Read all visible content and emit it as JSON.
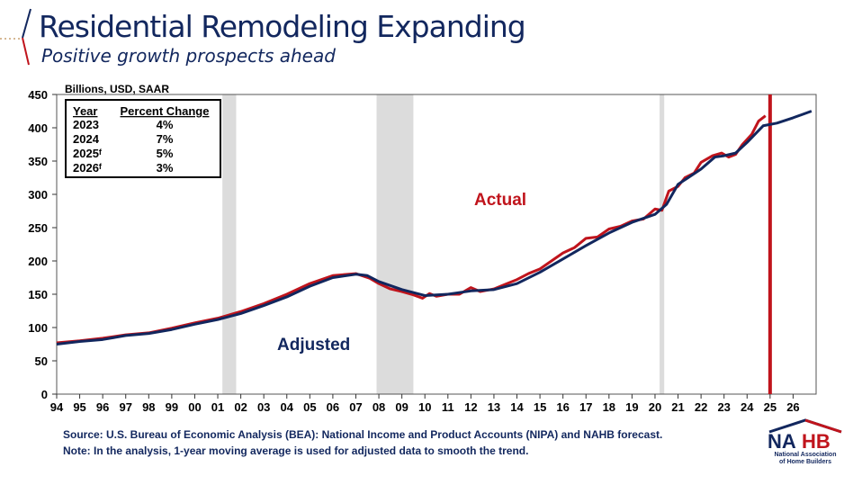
{
  "header": {
    "title": "Residential Remodeling Expanding",
    "subtitle": "Positive growth prospects ahead"
  },
  "footer": {
    "source": "Source: U.S. Bureau of Economic Analysis (BEA): National Income and Product Accounts (NIPA) and NAHB forecast.",
    "note": "Note: In the analysis, 1-year moving average is used for adjusted data to smooth the trend."
  },
  "logo": {
    "text": "NAHB",
    "line1": "National Association",
    "line2": "of Home Builders"
  },
  "colors": {
    "actual": "#c0141c",
    "adjusted": "#12275e",
    "recession": "#dcdcdc",
    "forecast_line": "#c0141c"
  },
  "chart_data": {
    "type": "line",
    "unit_label": "Billions, USD, SAAR",
    "ylim": [
      0,
      450
    ],
    "yticks": [
      0,
      50,
      100,
      150,
      200,
      250,
      300,
      350,
      400,
      450
    ],
    "xlim": [
      1994,
      2027
    ],
    "xtick_labels": [
      "94",
      "95",
      "96",
      "97",
      "98",
      "99",
      "00",
      "01",
      "02",
      "03",
      "04",
      "05",
      "06",
      "07",
      "08",
      "09",
      "10",
      "11",
      "12",
      "13",
      "14",
      "15",
      "16",
      "17",
      "18",
      "19",
      "20",
      "21",
      "22",
      "23",
      "24",
      "25",
      "26"
    ],
    "recessions": [
      [
        2001.2,
        2001.8
      ],
      [
        2007.9,
        2009.5
      ],
      [
        2020.2,
        2020.4
      ]
    ],
    "forecast_start": 2025.0,
    "annotations": [
      {
        "text": "Actual",
        "color": "#c0141c"
      },
      {
        "text": "Adjusted",
        "color": "#12275e"
      }
    ],
    "table": {
      "headers": [
        "Year",
        "Percent Change"
      ],
      "rows": [
        [
          "2023",
          "4%"
        ],
        [
          "2024",
          "7%"
        ],
        [
          "2025ᶠ",
          "5%"
        ],
        [
          "2026ᶠ",
          "3%"
        ]
      ]
    },
    "series": [
      {
        "name": "Actual",
        "points": [
          [
            1994,
            77
          ],
          [
            1995,
            80
          ],
          [
            1996,
            84
          ],
          [
            1997,
            89
          ],
          [
            1998,
            92
          ],
          [
            1999,
            99
          ],
          [
            2000,
            107
          ],
          [
            2001,
            114
          ],
          [
            2002,
            124
          ],
          [
            2003,
            136
          ],
          [
            2004,
            150
          ],
          [
            2005,
            166
          ],
          [
            2006,
            178
          ],
          [
            2007,
            181
          ],
          [
            2007.6,
            174
          ],
          [
            2008,
            166
          ],
          [
            2008.5,
            158
          ],
          [
            2009,
            154
          ],
          [
            2009.5,
            149
          ],
          [
            2009.9,
            144
          ],
          [
            2010.2,
            151
          ],
          [
            2010.5,
            147
          ],
          [
            2011,
            150
          ],
          [
            2011.5,
            150
          ],
          [
            2012,
            160
          ],
          [
            2012.4,
            154
          ],
          [
            2013,
            158
          ],
          [
            2013.5,
            165
          ],
          [
            2014,
            172
          ],
          [
            2014.5,
            181
          ],
          [
            2015,
            188
          ],
          [
            2015.5,
            200
          ],
          [
            2016,
            212
          ],
          [
            2016.5,
            220
          ],
          [
            2017,
            234
          ],
          [
            2017.5,
            236
          ],
          [
            2018,
            248
          ],
          [
            2018.5,
            252
          ],
          [
            2019,
            260
          ],
          [
            2019.5,
            263
          ],
          [
            2020,
            278
          ],
          [
            2020.3,
            276
          ],
          [
            2020.6,
            305
          ],
          [
            2021,
            312
          ],
          [
            2021.3,
            325
          ],
          [
            2021.7,
            332
          ],
          [
            2022,
            348
          ],
          [
            2022.5,
            358
          ],
          [
            2022.9,
            362
          ],
          [
            2023.2,
            356
          ],
          [
            2023.5,
            360
          ],
          [
            2023.8,
            375
          ],
          [
            2024.2,
            390
          ],
          [
            2024.5,
            410
          ],
          [
            2024.8,
            418
          ]
        ]
      },
      {
        "name": "Adjusted",
        "points": [
          [
            1994,
            75
          ],
          [
            1995,
            79
          ],
          [
            1996,
            82
          ],
          [
            1997,
            88
          ],
          [
            1998,
            91
          ],
          [
            1999,
            97
          ],
          [
            2000,
            105
          ],
          [
            2001,
            112
          ],
          [
            2002,
            121
          ],
          [
            2003,
            133
          ],
          [
            2004,
            146
          ],
          [
            2005,
            162
          ],
          [
            2006,
            175
          ],
          [
            2007,
            180
          ],
          [
            2007.5,
            178
          ],
          [
            2008,
            169
          ],
          [
            2009,
            157
          ],
          [
            2010,
            148
          ],
          [
            2011,
            150
          ],
          [
            2012,
            155
          ],
          [
            2013,
            157
          ],
          [
            2014,
            166
          ],
          [
            2015,
            183
          ],
          [
            2016,
            203
          ],
          [
            2017,
            223
          ],
          [
            2018,
            242
          ],
          [
            2019,
            258
          ],
          [
            2020,
            270
          ],
          [
            2020.5,
            285
          ],
          [
            2021,
            315
          ],
          [
            2022,
            338
          ],
          [
            2022.6,
            356
          ],
          [
            2023,
            358
          ],
          [
            2023.5,
            362
          ],
          [
            2024,
            378
          ],
          [
            2024.7,
            403
          ],
          [
            2025.3,
            407
          ],
          [
            2026,
            415
          ],
          [
            2026.8,
            425
          ]
        ]
      }
    ]
  }
}
